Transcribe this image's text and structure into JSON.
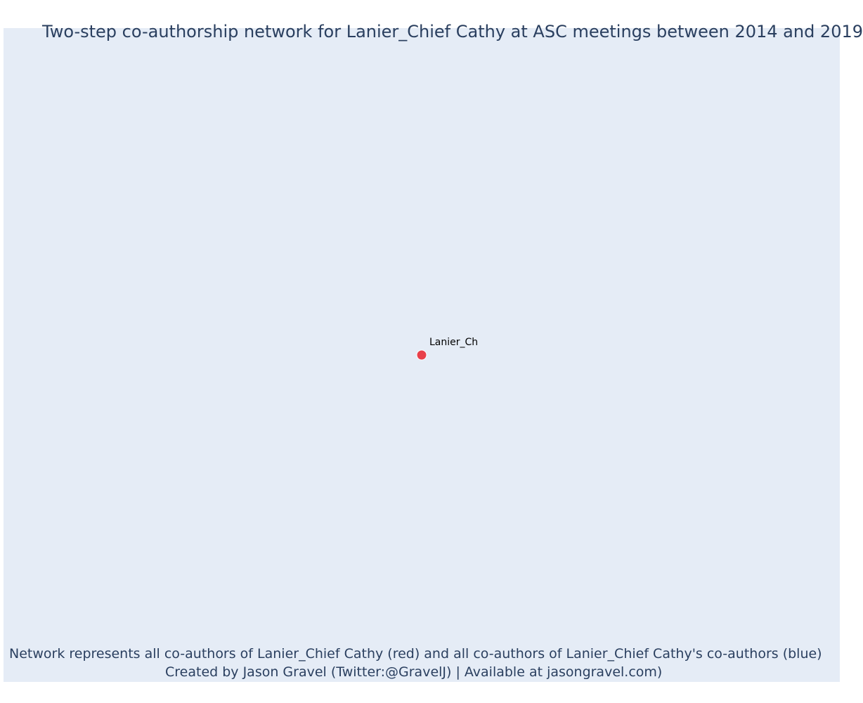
{
  "chart_data": {
    "type": "scatter",
    "title": "Two-step co-authorship network for Lanier_Chief Cathy at ASC meetings between 2014 and 2019",
    "xlabel": "",
    "ylabel": "",
    "grid": false,
    "legend": "none",
    "points": [
      {
        "label": "Lanier_Ch",
        "x": 0,
        "y": 0,
        "color": "#e8404a"
      }
    ],
    "xlim": [
      -1,
      1
    ],
    "ylim": [
      -1,
      1
    ]
  },
  "caption": {
    "line1": "Network represents all co-authors of Lanier_Chief Cathy (red) and all co-authors of Lanier_Chief Cathy's co-authors (blue)",
    "line2": "Created by Jason Gravel (Twitter:@GravelJ) | Available at jasongravel.com)"
  },
  "colors": {
    "background": "#e5ecf6",
    "text": "#2a3f5f",
    "focal_node": "#e8404a"
  }
}
